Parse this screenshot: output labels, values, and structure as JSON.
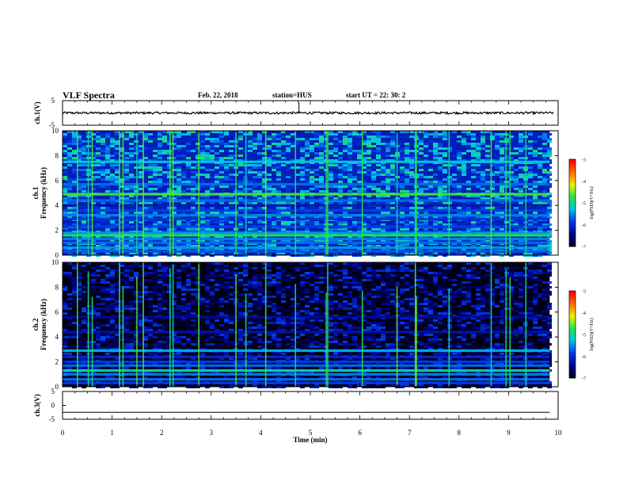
{
  "header": {
    "title": "VLF Spectra",
    "date": "Feb. 22, 2018",
    "station": "station=HUS",
    "start_ut": "start  UT =   22: 30: 2"
  },
  "chart_data": [
    {
      "type": "line",
      "panel": "ch1-waveform",
      "ylabel": "ch.1(V)",
      "x_range": [
        0,
        10
      ],
      "ylim": [
        -5,
        5
      ],
      "yticks": [
        "5",
        "-5"
      ],
      "series": [
        {
          "description_level": 0,
          "values_note": "noisy waveform centred near 0 V",
          "spike_x": 4.77,
          "spike_y": 0.8
        }
      ]
    },
    {
      "type": "heatmap",
      "panel": "ch1-spectrogram",
      "ylabel_line1": "ch.1",
      "ylabel_line2": "Frequency (kHz)",
      "x_range": [
        0,
        9.83
      ],
      "ylim": [
        0,
        10
      ],
      "yticks": [
        "0",
        "2",
        "4",
        "6",
        "8",
        "10"
      ],
      "colorbar": {
        "label": "log(PSD)(V²/Hz)",
        "range": [
          -7,
          -3
        ],
        "ticks": [
          "-3",
          "-4",
          "-5",
          "-6",
          "-7"
        ]
      },
      "bands_khz": [
        {
          "f": 4.9,
          "level": -4.6
        },
        {
          "f": 4.4,
          "level": -5.6
        },
        {
          "f": 4.0,
          "level": -6.2
        },
        {
          "f": 3.6,
          "level": -5.8
        },
        {
          "f": 3.2,
          "level": -5.5
        },
        {
          "f": 2.9,
          "level": -5.9
        },
        {
          "f": 2.3,
          "level": -5.8
        },
        {
          "f": 1.8,
          "level": -5.4
        },
        {
          "f": 1.6,
          "level": -4.8
        },
        {
          "f": 1.3,
          "level": -5.5
        },
        {
          "f": 1.0,
          "level": -5.6
        },
        {
          "f": 0.6,
          "level": -5.4
        },
        {
          "f": 0.3,
          "level": -5.7
        },
        {
          "f": 7.5,
          "level": -5.2
        },
        {
          "f": 5.7,
          "level": -5.6
        }
      ],
      "impulses_min": [
        0.3,
        0.52,
        0.6,
        1.15,
        1.22,
        1.5,
        1.63,
        2.17,
        2.23,
        2.75,
        3.5,
        3.7,
        4.1,
        4.7,
        5.32,
        5.35,
        6.05,
        6.75,
        7.12,
        7.14,
        7.8,
        8.65,
        8.95,
        9.03,
        9.35
      ]
    },
    {
      "type": "heatmap",
      "panel": "ch2-spectrogram",
      "ylabel_line1": "ch.2",
      "ylabel_line2": "Frequency (kHz)",
      "x_range": [
        0,
        9.83
      ],
      "ylim": [
        0,
        10
      ],
      "yticks": [
        "0",
        "2",
        "4",
        "6",
        "8",
        "10"
      ],
      "colorbar": {
        "label": "log(PSD)(V²/Hz)",
        "range": [
          -7,
          -3
        ],
        "ticks": [
          "-3",
          "-4",
          "-5",
          "-6",
          "-7"
        ]
      },
      "bands_khz": [
        {
          "f": 2.9,
          "level": -5.3
        },
        {
          "f": 2.4,
          "level": -6.0
        },
        {
          "f": 2.0,
          "level": -5.8
        },
        {
          "f": 1.7,
          "level": -5.6
        },
        {
          "f": 1.3,
          "level": -5.0
        },
        {
          "f": 1.0,
          "level": -5.5
        },
        {
          "f": 0.6,
          "level": -5.6
        },
        {
          "f": 0.3,
          "level": -5.8
        },
        {
          "f": 4.4,
          "level": -6.2
        },
        {
          "f": 5.6,
          "level": -6.3
        }
      ],
      "impulses_min": [
        0.3,
        0.52,
        0.6,
        1.15,
        1.22,
        1.5,
        1.63,
        2.17,
        2.23,
        2.75,
        3.5,
        3.7,
        4.1,
        4.7,
        5.32,
        5.35,
        6.05,
        6.75,
        7.12,
        7.14,
        7.8,
        8.65,
        8.95,
        9.03,
        9.35
      ]
    },
    {
      "type": "line",
      "panel": "ch3-waveform",
      "ylabel": "ch.3(V)",
      "x_range": [
        0,
        10
      ],
      "ylim": [
        -5,
        5
      ],
      "yticks": [
        "5",
        "0",
        "-5"
      ],
      "xlabel": "Time (min)",
      "xticks": [
        "0",
        "1",
        "2",
        "3",
        "4",
        "5",
        "6",
        "7",
        "8",
        "9",
        "10"
      ],
      "series": [
        {
          "flat_value": -2.5
        }
      ]
    }
  ]
}
